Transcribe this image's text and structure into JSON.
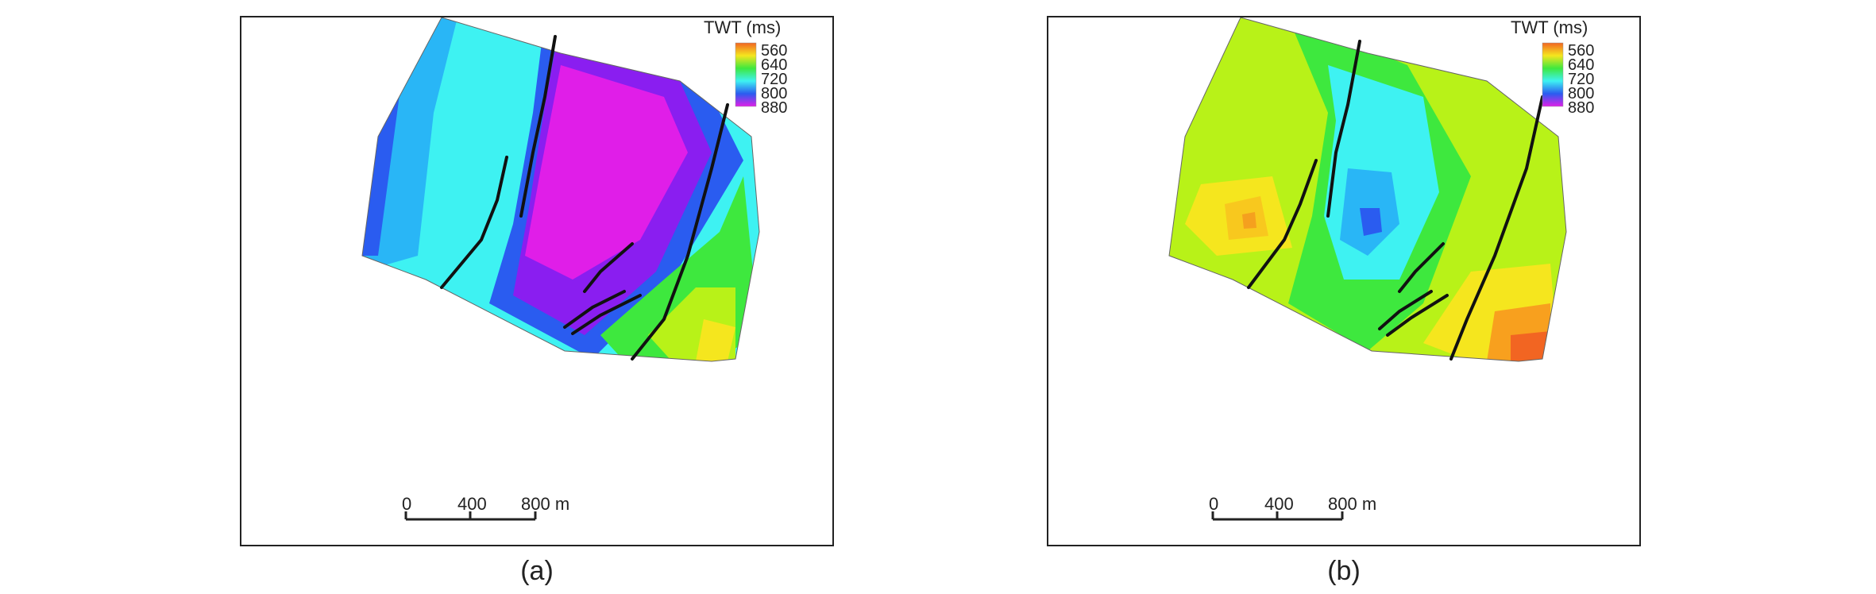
{
  "panels": [
    {
      "id": "a",
      "caption": "(a)",
      "legend": {
        "title": "TWT (ms)",
        "ticks": [
          "560",
          "640",
          "720",
          "800",
          "880"
        ]
      },
      "scalebar": {
        "labels": [
          "0",
          "400",
          "800 m"
        ]
      }
    },
    {
      "id": "b",
      "caption": "(b)",
      "legend": {
        "title": "TWT (ms)",
        "ticks": [
          "560",
          "640",
          "720",
          "800",
          "880"
        ]
      },
      "scalebar": {
        "labels": [
          "0",
          "400",
          "800 m"
        ]
      }
    }
  ],
  "colors": {
    "orange": "#f26522",
    "yellow": "#f5e61e",
    "lime": "#b8f218",
    "green": "#3ee83e",
    "cyan": "#3ef2f2",
    "lightblue": "#29b6f6",
    "blue": "#2a5cf0",
    "violet": "#8a1ef0",
    "magenta": "#e01ee8",
    "fault": "#111111"
  }
}
